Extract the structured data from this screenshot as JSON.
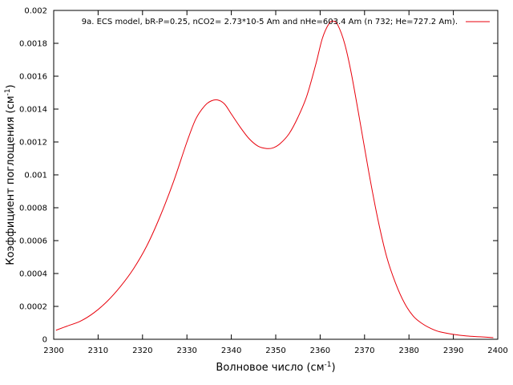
{
  "chart_data": {
    "type": "line",
    "xlabel": "Волновое число (см",
    "xlabel_sup": "-1",
    "xlabel_end": ")",
    "ylabel": "Коэффициент поглощения (см",
    "ylabel_sup": "-1",
    "ylabel_end": ")",
    "xlim": [
      2300,
      2400
    ],
    "ylim": [
      0,
      0.002
    ],
    "xticks": [
      "2300",
      "2310",
      "2320",
      "2330",
      "2340",
      "2350",
      "2360",
      "2370",
      "2380",
      "2390",
      "2400"
    ],
    "yticks": [
      "0",
      "0.0002",
      "0.0004",
      "0.0006",
      "0.0008",
      "0.001",
      "0.0012",
      "0.0014",
      "0.0016",
      "0.0018",
      "0.002"
    ],
    "legend_position": "top-right",
    "series": [
      {
        "name": "9a. ECS model, bR-P=0.25, nCO2= 2.73*10-5 Am and nHe=603.4 Am (n  732; He=727.2 Am).",
        "color": "#e8000b",
        "x": [
          2300.5,
          2303,
          2306,
          2309,
          2312,
          2315,
          2318,
          2321,
          2324,
          2327,
          2330,
          2332,
          2334,
          2335.5,
          2337,
          2338.5,
          2340,
          2342,
          2344,
          2346,
          2348,
          2349.5,
          2351,
          2353,
          2355,
          2357,
          2359,
          2360.5,
          2362,
          2363,
          2364,
          2365.5,
          2367,
          2369,
          2371,
          2373,
          2375,
          2377,
          2379,
          2381,
          2383,
          2385,
          2387,
          2390,
          2393,
          2396,
          2399
        ],
        "y": [
          5.5e-05,
          8e-05,
          0.00011,
          0.00016,
          0.00023,
          0.00032,
          0.00043,
          0.00057,
          0.00075,
          0.00096,
          0.0012,
          0.00134,
          0.00142,
          0.00145,
          0.001455,
          0.00143,
          0.00137,
          0.00129,
          0.00122,
          0.001175,
          0.00116,
          0.001165,
          0.00119,
          0.00125,
          0.00135,
          0.00148,
          0.00167,
          0.00183,
          0.00192,
          0.001935,
          0.00191,
          0.0018,
          0.00162,
          0.00132,
          0.00101,
          0.00073,
          0.0005,
          0.00034,
          0.00022,
          0.00014,
          9.5e-05,
          6.5e-05,
          4.5e-05,
          3e-05,
          2e-05,
          1.5e-05,
          1e-05
        ]
      }
    ]
  }
}
